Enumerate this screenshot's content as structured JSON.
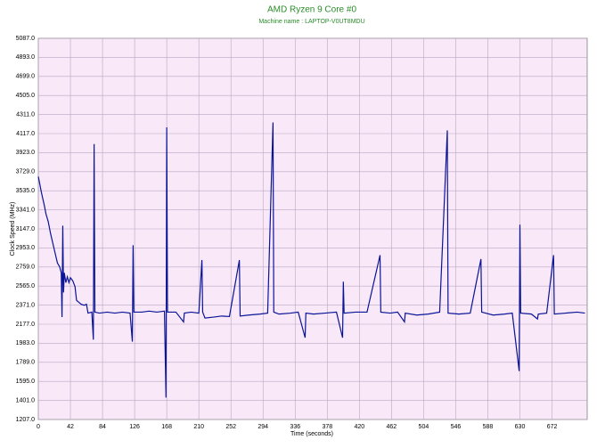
{
  "chart_data": {
    "type": "line",
    "title": "AMD Ryzen 9 Core #0",
    "subtitle": "Machine name : LAPTOP-V0UT8MDU",
    "xlabel": "Time (seconds)",
    "ylabel": "Clock Speed (MHz)",
    "grid": true,
    "xlim": [
      0,
      718
    ],
    "ylim": [
      1207,
      5087
    ],
    "xticks": [
      0,
      42,
      84,
      126,
      168,
      210,
      252,
      294,
      336,
      378,
      420,
      462,
      504,
      546,
      588,
      630,
      672
    ],
    "yticks": [
      {
        "value": 1207,
        "label": "1207.0"
      },
      {
        "value": 1401,
        "label": "1401.0"
      },
      {
        "value": 1595,
        "label": "1595.0"
      },
      {
        "value": 1789,
        "label": "1789.0"
      },
      {
        "value": 1983,
        "label": "1983.0"
      },
      {
        "value": 2177,
        "label": "2177.0"
      },
      {
        "value": 2371,
        "label": "2371.0"
      },
      {
        "value": 2565,
        "label": "2565.0"
      },
      {
        "value": 2759,
        "label": "2759.0"
      },
      {
        "value": 2953,
        "label": "2953.0"
      },
      {
        "value": 3147,
        "label": "3147.0"
      },
      {
        "value": 3341,
        "label": "3341.0"
      },
      {
        "value": 3535,
        "label": "3535.0"
      },
      {
        "value": 3729,
        "label": "3729.0"
      },
      {
        "value": 3923,
        "label": "3923.0"
      },
      {
        "value": 4117,
        "label": "4117.0"
      },
      {
        "value": 4311,
        "label": "4311.0"
      },
      {
        "value": 4505,
        "label": "4505.0"
      },
      {
        "value": 4699,
        "label": "4699.0"
      },
      {
        "value": 4893,
        "label": "4893.0"
      },
      {
        "value": 5087,
        "label": "5087.0"
      }
    ],
    "series": [
      {
        "name": "Clock Speed",
        "color": "#0a1496",
        "x": [
          0,
          2,
          4,
          6,
          8,
          10,
          13,
          16,
          19,
          22,
          25,
          28,
          30,
          31,
          32,
          33,
          34,
          36,
          38,
          40,
          42,
          45,
          48,
          50,
          53,
          56,
          60,
          63,
          65,
          70,
          72,
          73,
          74,
          80,
          90,
          100,
          110,
          120,
          123,
          124,
          125,
          135,
          145,
          155,
          165,
          167,
          168,
          169,
          180,
          190,
          191,
          200,
          210,
          214,
          215,
          218,
          230,
          240,
          250,
          263,
          264,
          275,
          290,
          300,
          307,
          308,
          315,
          330,
          340,
          349,
          350,
          360,
          375,
          390,
          398,
          399,
          400,
          415,
          430,
          447,
          448,
          460,
          470,
          479,
          480,
          495,
          510,
          525,
          534,
          535,
          536,
          550,
          565,
          579,
          580,
          595,
          610,
          620,
          629,
          630,
          631,
          645,
          653,
          654,
          665,
          674,
          675,
          690,
          705,
          715
        ],
        "values": [
          3680,
          3600,
          3520,
          3450,
          3380,
          3300,
          3220,
          3100,
          3000,
          2900,
          2800,
          2760,
          2700,
          2250,
          3180,
          2500,
          2700,
          2600,
          2660,
          2600,
          2650,
          2620,
          2560,
          2420,
          2400,
          2380,
          2370,
          2380,
          2290,
          2300,
          2020,
          4010,
          2300,
          2290,
          2300,
          2290,
          2300,
          2290,
          2000,
          2980,
          2300,
          2300,
          2310,
          2300,
          2310,
          1430,
          4180,
          2300,
          2300,
          2200,
          2290,
          2300,
          2290,
          2830,
          2300,
          2240,
          2250,
          2260,
          2255,
          2830,
          2260,
          2270,
          2280,
          2290,
          4230,
          2300,
          2280,
          2290,
          2300,
          2040,
          2290,
          2280,
          2290,
          2300,
          2040,
          2610,
          2290,
          2300,
          2300,
          2880,
          2300,
          2290,
          2300,
          2200,
          2290,
          2270,
          2280,
          2300,
          3960,
          4150,
          2290,
          2280,
          2290,
          2840,
          2300,
          2270,
          2280,
          2290,
          1700,
          3190,
          2290,
          2280,
          2230,
          2280,
          2290,
          2880,
          2280,
          2290,
          2300,
          2290
        ]
      }
    ]
  }
}
